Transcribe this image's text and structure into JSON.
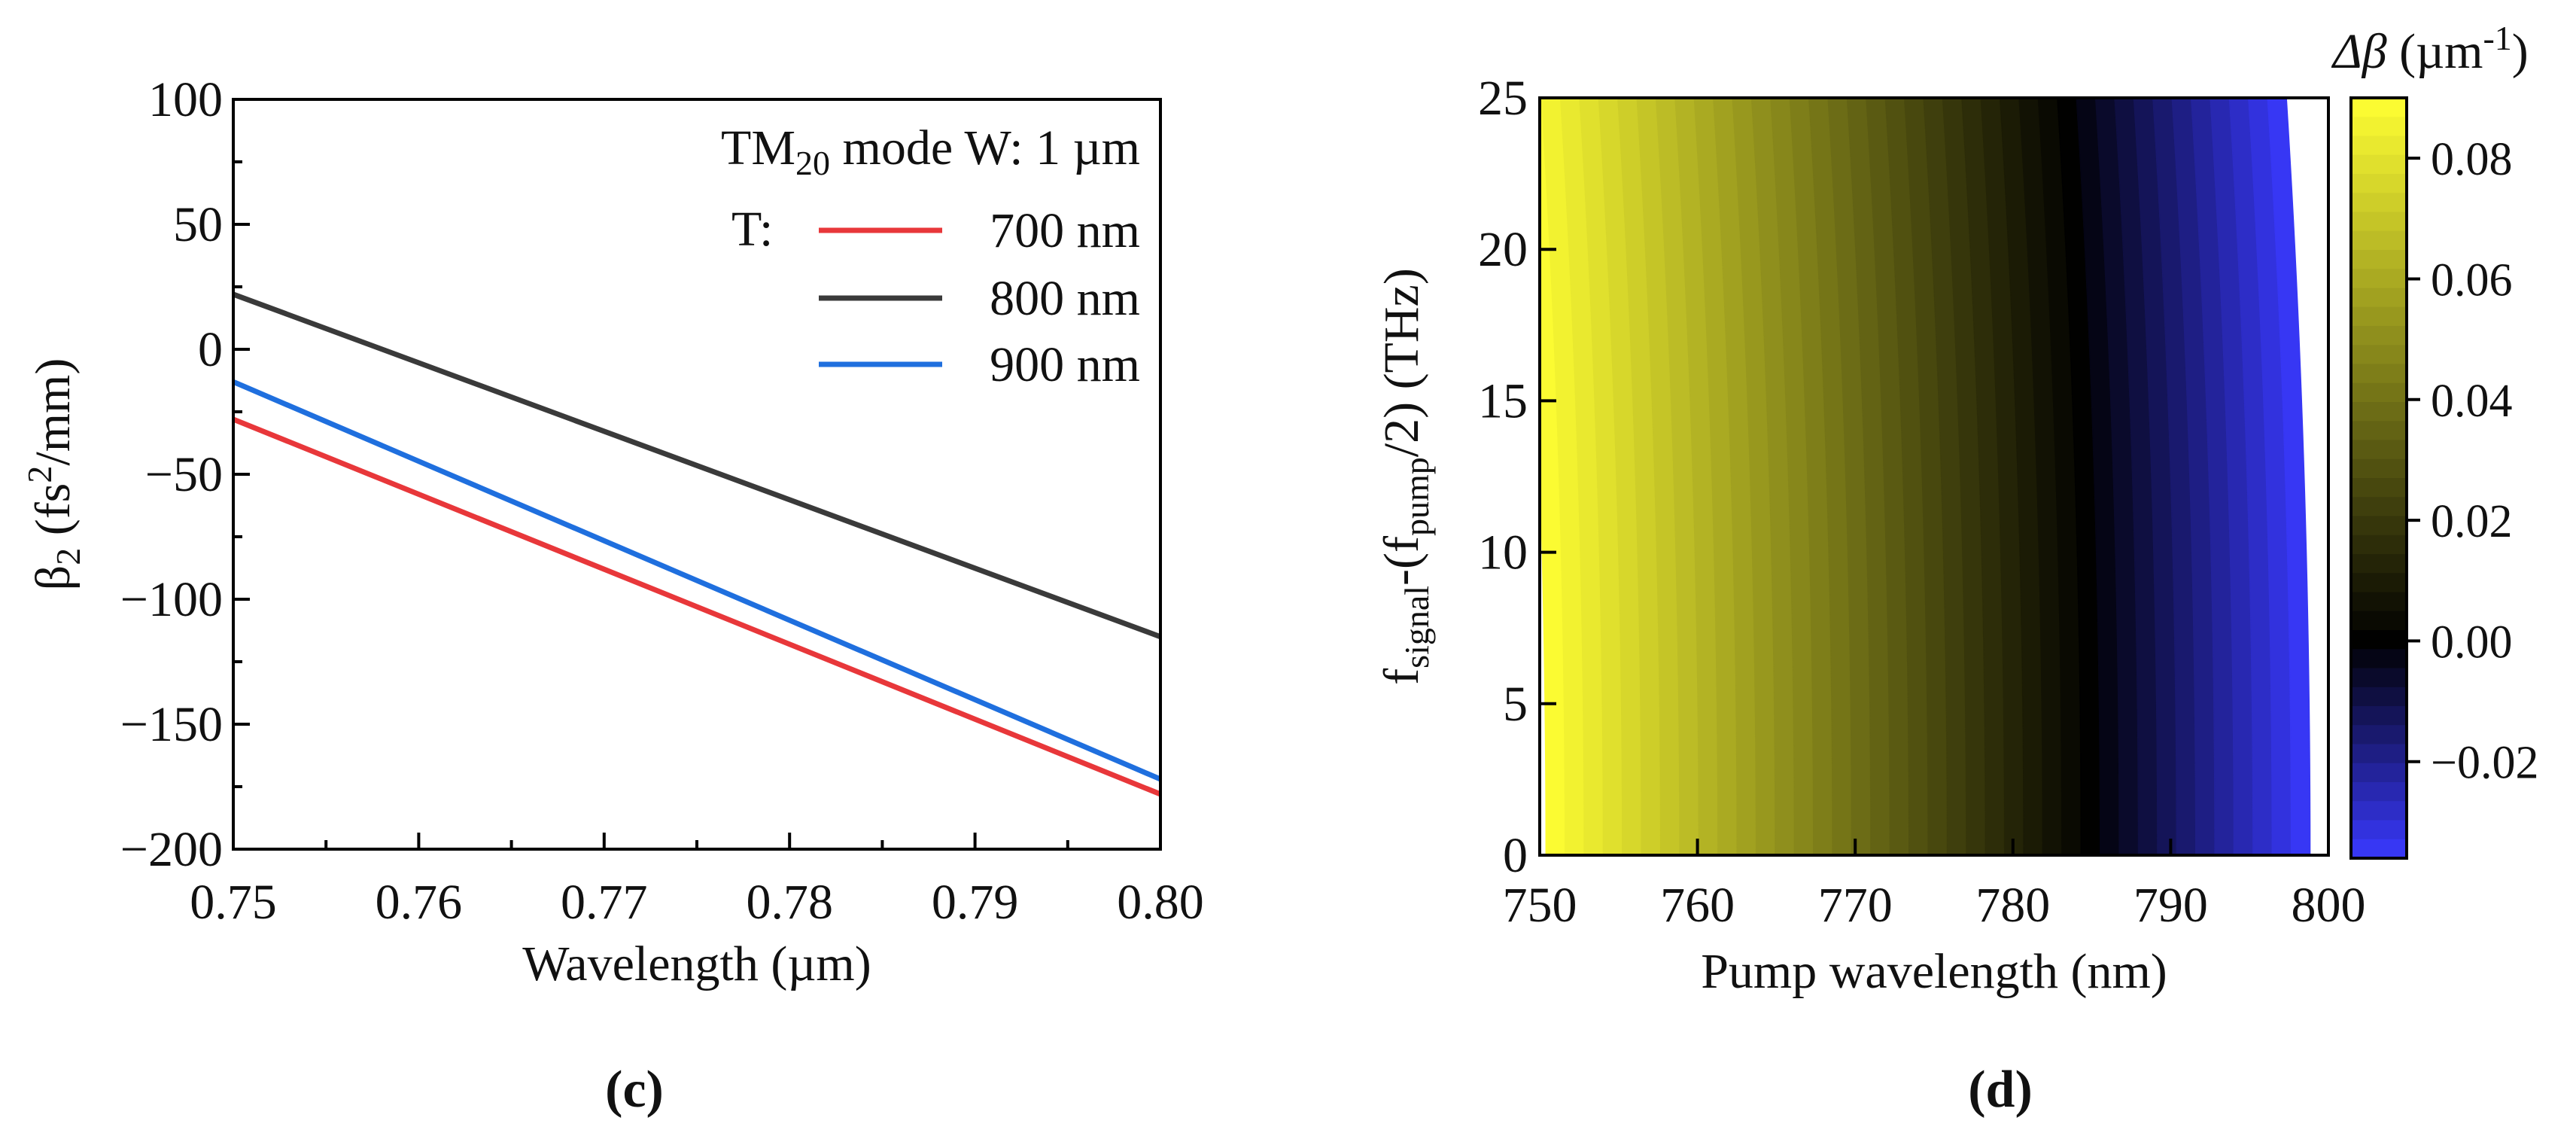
{
  "chart_data": [
    {
      "id": "c",
      "type": "line",
      "panel_label": "c",
      "xlabel": "Wavelength (µm)",
      "ylabel": {
        "main": "β",
        "sub": "2",
        "unit_pre": " (fs",
        "sup": "2",
        "unit_post": "/mm)"
      },
      "xlim": [
        0.75,
        0.8
      ],
      "ylim": [
        -200,
        100
      ],
      "xticks": [
        0.75,
        0.76,
        0.77,
        0.78,
        0.79,
        0.8
      ],
      "xticklabels": [
        "0.75",
        "0.76",
        "0.77",
        "0.78",
        "0.79",
        "0.80"
      ],
      "yticks": [
        -200,
        -150,
        -100,
        -50,
        0,
        50,
        100
      ],
      "yticklabels": [
        "−200",
        "−150",
        "−100",
        "−50",
        "0",
        "50",
        "100"
      ],
      "legend": {
        "title": {
          "pre": "TM",
          "sub": "20",
          "post": " mode  W: 1 µm"
        },
        "prefix": "T:",
        "position": "top-right"
      },
      "series": [
        {
          "name": "700 nm",
          "color": "#e8373a",
          "x": [
            0.75,
            0.8
          ],
          "y": [
            -28,
            -178
          ]
        },
        {
          "name": "800 nm",
          "color": "#3a3a3a",
          "x": [
            0.75,
            0.8
          ],
          "y": [
            22,
            -115
          ]
        },
        {
          "name": "900 nm",
          "color": "#1f6fde",
          "x": [
            0.75,
            0.8
          ],
          "y": [
            -13,
            -172
          ]
        }
      ]
    },
    {
      "id": "d",
      "type": "heatmap",
      "panel_label": "d",
      "xlabel": "Pump wavelength (nm)",
      "ylabel": {
        "main": "f",
        "sub1": "signal",
        "mid": "-(f",
        "sub2": "pump",
        "post": "/2) (THz)"
      },
      "xlim": [
        750,
        800
      ],
      "ylim": [
        0,
        25
      ],
      "xticks": [
        750,
        760,
        770,
        780,
        790,
        800
      ],
      "xticklabels": [
        "750",
        "760",
        "770",
        "780",
        "790",
        "800"
      ],
      "yticks": [
        0,
        5,
        10,
        15,
        20,
        25
      ],
      "yticklabels": [
        "0",
        "5",
        "10",
        "15",
        "20",
        "25"
      ],
      "colorbar": {
        "title": {
          "main": "Δβ",
          "unit_pre": " (µm",
          "sup": "-1",
          "unit_post": ")"
        },
        "range": [
          -0.036,
          0.09
        ],
        "ticks": [
          -0.02,
          0,
          0.02,
          0.04,
          0.06,
          0.08
        ],
        "ticklabels": [
          "−0.02",
          "0.00",
          "0.02",
          "0.04",
          "0.06",
          "0.08"
        ],
        "levels": 40,
        "colormap": [
          "#3a3aff",
          "#000000",
          "#ffff33"
        ],
        "colormap_stops": [
          -0.036,
          0,
          0.09
        ]
      },
      "model": {
        "description": "Δβ decreases roughly linearly with pump wavelength; zero contour near 785 nm, slightly curved toward shorter wavelengths at higher detuning",
        "zero_wavelength_nm_at_0THz": 785,
        "zero_wavelength_nm_at_25THz": 783.5,
        "slope_per_nm": -0.0026
      }
    }
  ]
}
